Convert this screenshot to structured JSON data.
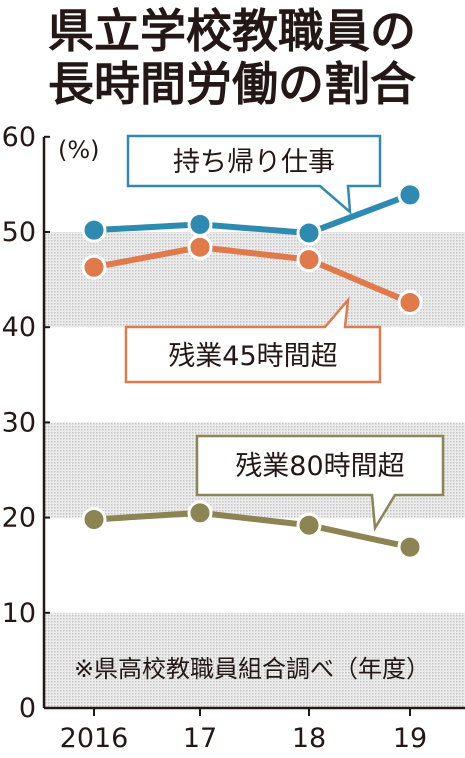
{
  "title_lines": [
    "県立学校教職員の",
    "長時間労働の割合"
  ],
  "unit": "(%)",
  "source": "※県高校教職員組合調べ（年度）",
  "colors": {
    "blue": "#2e8ab0",
    "orange": "#e07a4b",
    "olive": "#8c8453",
    "band": "#d9d9d9",
    "text": "#231815"
  },
  "chart_data": {
    "type": "line",
    "x": [
      "2016",
      "17",
      "18",
      "19"
    ],
    "ylim": [
      0,
      60
    ],
    "yticks": [
      "60",
      "50",
      "40",
      "30",
      "20",
      "10",
      "0"
    ],
    "series": [
      {
        "name": "持ち帰り仕事",
        "values": [
          50.2,
          50.8,
          49.9,
          53.9
        ]
      },
      {
        "name": "残業45時間超",
        "values": [
          46.3,
          48.4,
          47.1,
          42.6
        ]
      },
      {
        "name": "残業80時間超",
        "values": [
          19.8,
          20.5,
          19.2,
          16.9
        ]
      }
    ]
  }
}
